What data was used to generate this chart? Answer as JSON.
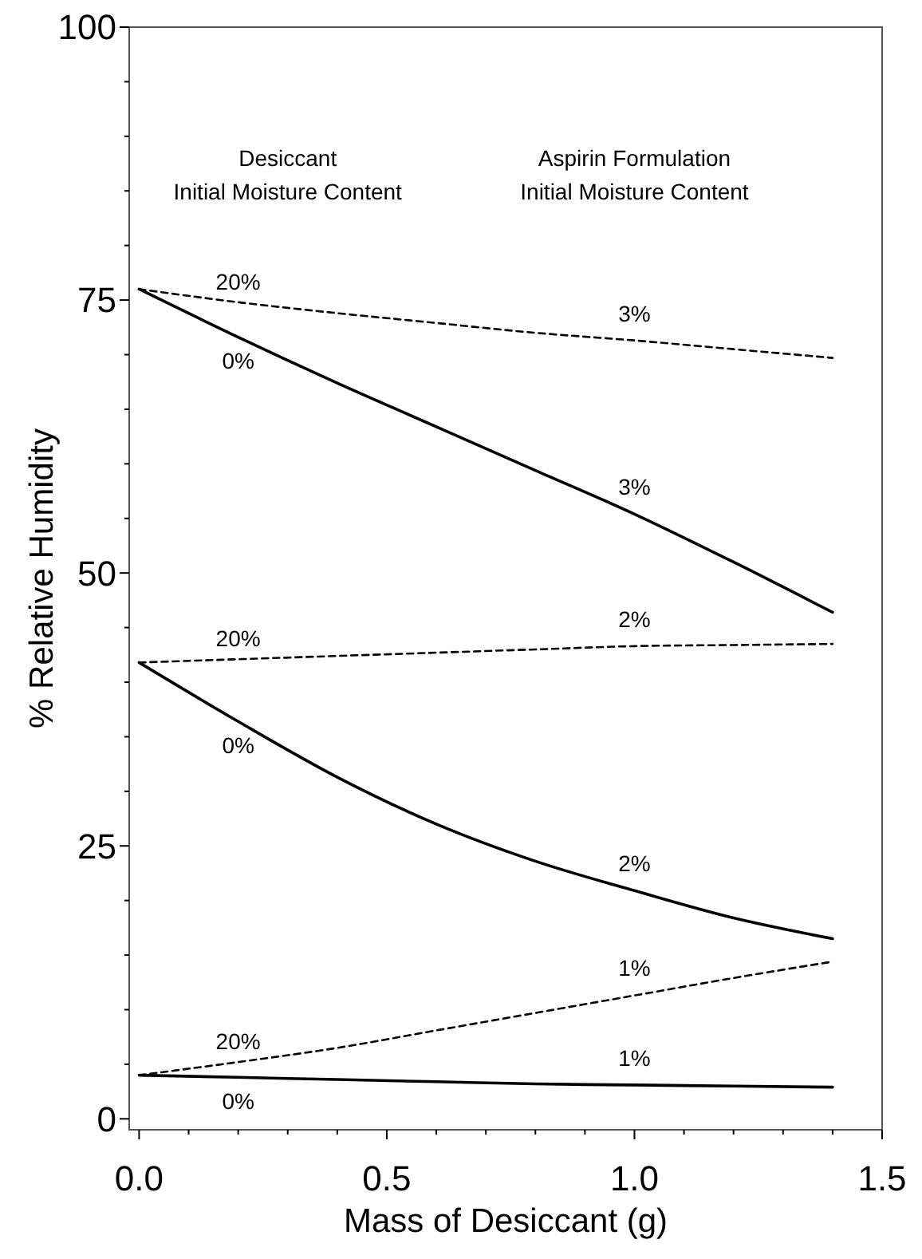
{
  "chart_data": {
    "type": "line",
    "xlabel": "Mass of Desiccant (g)",
    "ylabel": "% Relative Humidity",
    "xlim": [
      -0.02,
      1.5
    ],
    "ylim": [
      -1,
      100
    ],
    "xticks": [
      {
        "value": 0,
        "label": "0.0"
      },
      {
        "value": 0.1,
        "label": null
      },
      {
        "value": 0.2,
        "label": null
      },
      {
        "value": 0.3,
        "label": null
      },
      {
        "value": 0.4,
        "label": null
      },
      {
        "value": 0.5,
        "label": "0.5"
      },
      {
        "value": 0.6,
        "label": null
      },
      {
        "value": 0.7,
        "label": null
      },
      {
        "value": 0.8,
        "label": null
      },
      {
        "value": 0.9,
        "label": null
      },
      {
        "value": 1,
        "label": "1.0"
      },
      {
        "value": 1.1,
        "label": null
      },
      {
        "value": 1.2,
        "label": null
      },
      {
        "value": 1.3,
        "label": null
      },
      {
        "value": 1.4,
        "label": null
      },
      {
        "value": 1.5,
        "label": "1.5"
      }
    ],
    "yticks": [
      0,
      {
        "value": 5,
        "label": null
      },
      {
        "value": 10,
        "label": null
      },
      {
        "value": 15,
        "label": null
      },
      {
        "value": 20,
        "label": null
      },
      25,
      {
        "value": 30,
        "label": null
      },
      {
        "value": 35,
        "label": null
      },
      {
        "value": 40,
        "label": null
      },
      {
        "value": 45,
        "label": null
      },
      50,
      {
        "value": 55,
        "label": null
      },
      {
        "value": 60,
        "label": null
      },
      {
        "value": 65,
        "label": null
      },
      {
        "value": 70,
        "label": null
      },
      75,
      {
        "value": 80,
        "label": null
      },
      {
        "value": 85,
        "label": null
      },
      {
        "value": 90,
        "label": null
      },
      {
        "value": 95,
        "label": null
      },
      100
    ],
    "grid": false,
    "marker": "none",
    "x": [
      0,
      0.2,
      0.4,
      0.6,
      0.8,
      1.0,
      1.2,
      1.4
    ],
    "series": [
      {
        "color": "#000000",
        "line_style": "dashed",
        "values": [
          76.0,
          74.8,
          73.8,
          72.9,
          72.0,
          71.3,
          70.5,
          69.7
        ]
      },
      {
        "color": "#000000",
        "line_style": "solid",
        "values": [
          76.0,
          71.6,
          67.4,
          63.4,
          59.4,
          55.4,
          51.0,
          46.4
        ]
      },
      {
        "color": "#000000",
        "line_style": "dashed",
        "values": [
          41.8,
          42.1,
          42.4,
          42.7,
          43.0,
          43.3,
          43.4,
          43.5
        ]
      },
      {
        "color": "#000000",
        "line_style": "solid",
        "values": [
          41.8,
          36.4,
          31.3,
          27.0,
          23.6,
          20.9,
          18.4,
          16.5
        ]
      },
      {
        "color": "#000000",
        "line_style": "dashed",
        "values": [
          4.0,
          5.2,
          6.5,
          8.1,
          9.7,
          11.3,
          12.9,
          14.4
        ]
      },
      {
        "color": "#000000",
        "line_style": "solid",
        "values": [
          4.0,
          3.8,
          3.6,
          3.4,
          3.2,
          3.1,
          3.0,
          2.9
        ]
      }
    ],
    "annotations": [
      "Desiccant\nInitial Moisture Content",
      "Aspirin Formulation\nInitial Moisture Content",
      "20%",
      "3%",
      "0%",
      "3%",
      "20%",
      "2%",
      "0%",
      "2%",
      "20%",
      "1%",
      "0%",
      "1%"
    ]
  }
}
